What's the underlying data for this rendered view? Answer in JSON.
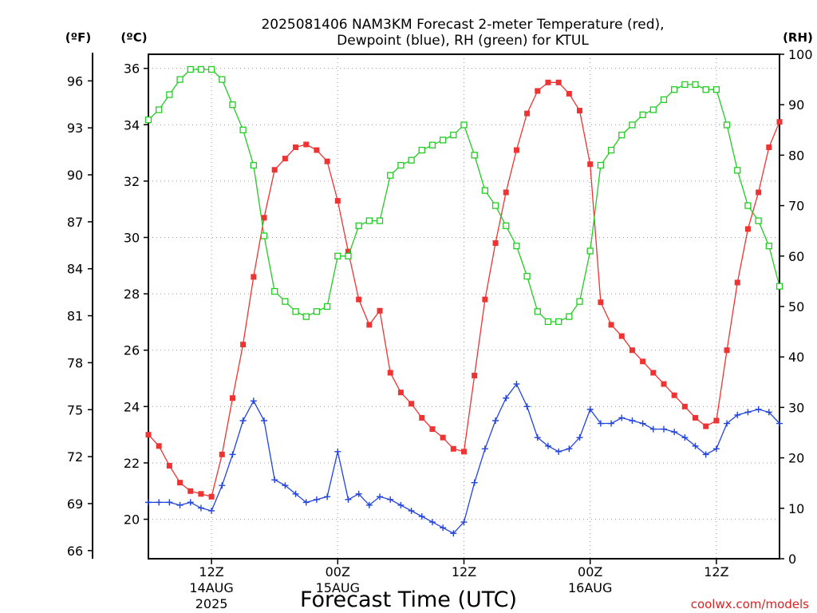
{
  "chart_data": {
    "type": "line",
    "title_line1": "2025081406 NAM3KM Forecast 2-meter Temperature (red),",
    "title_line2": "Dewpoint (blue), RH (green) for KTUL",
    "xlabel": "Forecast Time (UTC)",
    "credit": "coolwx.com/models",
    "axis_unit_f": "(ºF)",
    "axis_unit_c": "(ºC)",
    "axis_unit_rh": "(RH)",
    "grid": true,
    "x_range_hours": [
      6,
      66
    ],
    "x_ticks": [
      {
        "hour": 12,
        "label": "12Z",
        "date": "14AUG",
        "year": "2025"
      },
      {
        "hour": 24,
        "label": "00Z",
        "date": "15AUG",
        "year": ""
      },
      {
        "hour": 36,
        "label": "12Z",
        "date": "",
        "year": ""
      },
      {
        "hour": 48,
        "label": "00Z",
        "date": "16AUG",
        "year": ""
      },
      {
        "hour": 60,
        "label": "12Z",
        "date": "",
        "year": ""
      }
    ],
    "c_range": [
      18.6,
      36.5
    ],
    "c_ticks": [
      "20",
      "22",
      "24",
      "26",
      "28",
      "30",
      "32",
      "34",
      "36"
    ],
    "f_ticks": [
      "66",
      "69",
      "72",
      "75",
      "78",
      "81",
      "84",
      "87",
      "90",
      "93",
      "96"
    ],
    "rh_range": [
      0,
      100
    ],
    "rh_ticks": [
      "0",
      "10",
      "20",
      "30",
      "40",
      "50",
      "60",
      "70",
      "80",
      "90",
      "100"
    ],
    "series": [
      {
        "color": "#ee3333",
        "axis": "celsius",
        "marker": "filled-square",
        "hours": [
          6,
          7,
          8,
          9,
          10,
          11,
          12,
          13,
          14,
          15,
          16,
          17,
          18,
          19,
          20,
          21,
          22,
          23,
          24,
          25,
          26,
          27,
          28,
          29,
          30,
          31,
          32,
          33,
          34,
          35,
          36,
          37,
          38,
          39,
          40,
          41,
          42,
          43,
          44,
          45,
          46,
          47,
          48,
          49,
          50,
          51,
          52,
          53,
          54,
          55,
          56,
          57,
          58,
          59,
          60,
          61,
          62,
          63,
          64,
          65,
          66
        ],
        "values": [
          23.0,
          22.6,
          21.9,
          21.3,
          21.0,
          20.9,
          20.8,
          22.3,
          24.3,
          26.2,
          28.6,
          30.7,
          32.4,
          32.8,
          33.2,
          33.3,
          33.1,
          32.7,
          31.3,
          29.5,
          27.8,
          26.9,
          27.4,
          25.2,
          24.5,
          24.1,
          23.6,
          23.2,
          22.9,
          22.5,
          22.4,
          25.1,
          27.8,
          29.8,
          31.6,
          33.1,
          34.4,
          35.2,
          35.5,
          35.5,
          35.1,
          34.5,
          32.6,
          27.7,
          26.9,
          26.5,
          26.0,
          25.6,
          25.2,
          24.8,
          24.4,
          24.0,
          23.6,
          23.3,
          23.5,
          26.0,
          28.4,
          30.3,
          31.6,
          33.2,
          34.1
        ]
      },
      {
        "color": "#2244dd",
        "axis": "celsius",
        "marker": "plus",
        "hours": [
          6,
          7,
          8,
          9,
          10,
          11,
          12,
          13,
          14,
          15,
          16,
          17,
          18,
          19,
          20,
          21,
          22,
          23,
          24,
          25,
          26,
          27,
          28,
          29,
          30,
          31,
          32,
          33,
          34,
          35,
          36,
          37,
          38,
          39,
          40,
          41,
          42,
          43,
          44,
          45,
          46,
          47,
          48,
          49,
          50,
          51,
          52,
          53,
          54,
          55,
          56,
          57,
          58,
          59,
          60,
          61,
          62,
          63,
          64,
          65,
          66
        ],
        "values": [
          20.6,
          20.6,
          20.6,
          20.5,
          20.6,
          20.4,
          20.3,
          21.2,
          22.3,
          23.5,
          24.2,
          23.5,
          21.4,
          21.2,
          20.9,
          20.6,
          20.7,
          20.8,
          22.4,
          20.7,
          20.9,
          20.5,
          20.8,
          20.7,
          20.5,
          20.3,
          20.1,
          19.9,
          19.7,
          19.5,
          19.9,
          21.3,
          22.5,
          23.5,
          24.3,
          24.8,
          24.0,
          22.9,
          22.6,
          22.4,
          22.5,
          22.9,
          23.9,
          23.4,
          23.4,
          23.6,
          23.5,
          23.4,
          23.2,
          23.2,
          23.1,
          22.9,
          22.6,
          22.3,
          22.5,
          23.4,
          23.7,
          23.8,
          23.9,
          23.8,
          23.4
        ]
      },
      {
        "color": "#22cc22",
        "axis": "rh",
        "marker": "open-square",
        "hours": [
          6,
          7,
          8,
          9,
          10,
          11,
          12,
          13,
          14,
          15,
          16,
          17,
          18,
          19,
          20,
          21,
          22,
          23,
          24,
          25,
          26,
          27,
          28,
          29,
          30,
          31,
          32,
          33,
          34,
          35,
          36,
          37,
          38,
          39,
          40,
          41,
          42,
          43,
          44,
          45,
          46,
          47,
          48,
          49,
          50,
          51,
          52,
          53,
          54,
          55,
          56,
          57,
          58,
          59,
          60,
          61,
          62,
          63,
          64,
          65,
          66
        ],
        "values": [
          87,
          89,
          92,
          95,
          97,
          97,
          97,
          95,
          90,
          85,
          78,
          64,
          53,
          51,
          49,
          48,
          49,
          50,
          60,
          60,
          66,
          67,
          67,
          76,
          78,
          79,
          81,
          82,
          83,
          84,
          86,
          80,
          73,
          70,
          66,
          62,
          56,
          49,
          47,
          47,
          48,
          51,
          61,
          78,
          81,
          84,
          86,
          88,
          89,
          91,
          93,
          94,
          94,
          93,
          93,
          86,
          77,
          70,
          67,
          62,
          54
        ]
      }
    ]
  }
}
